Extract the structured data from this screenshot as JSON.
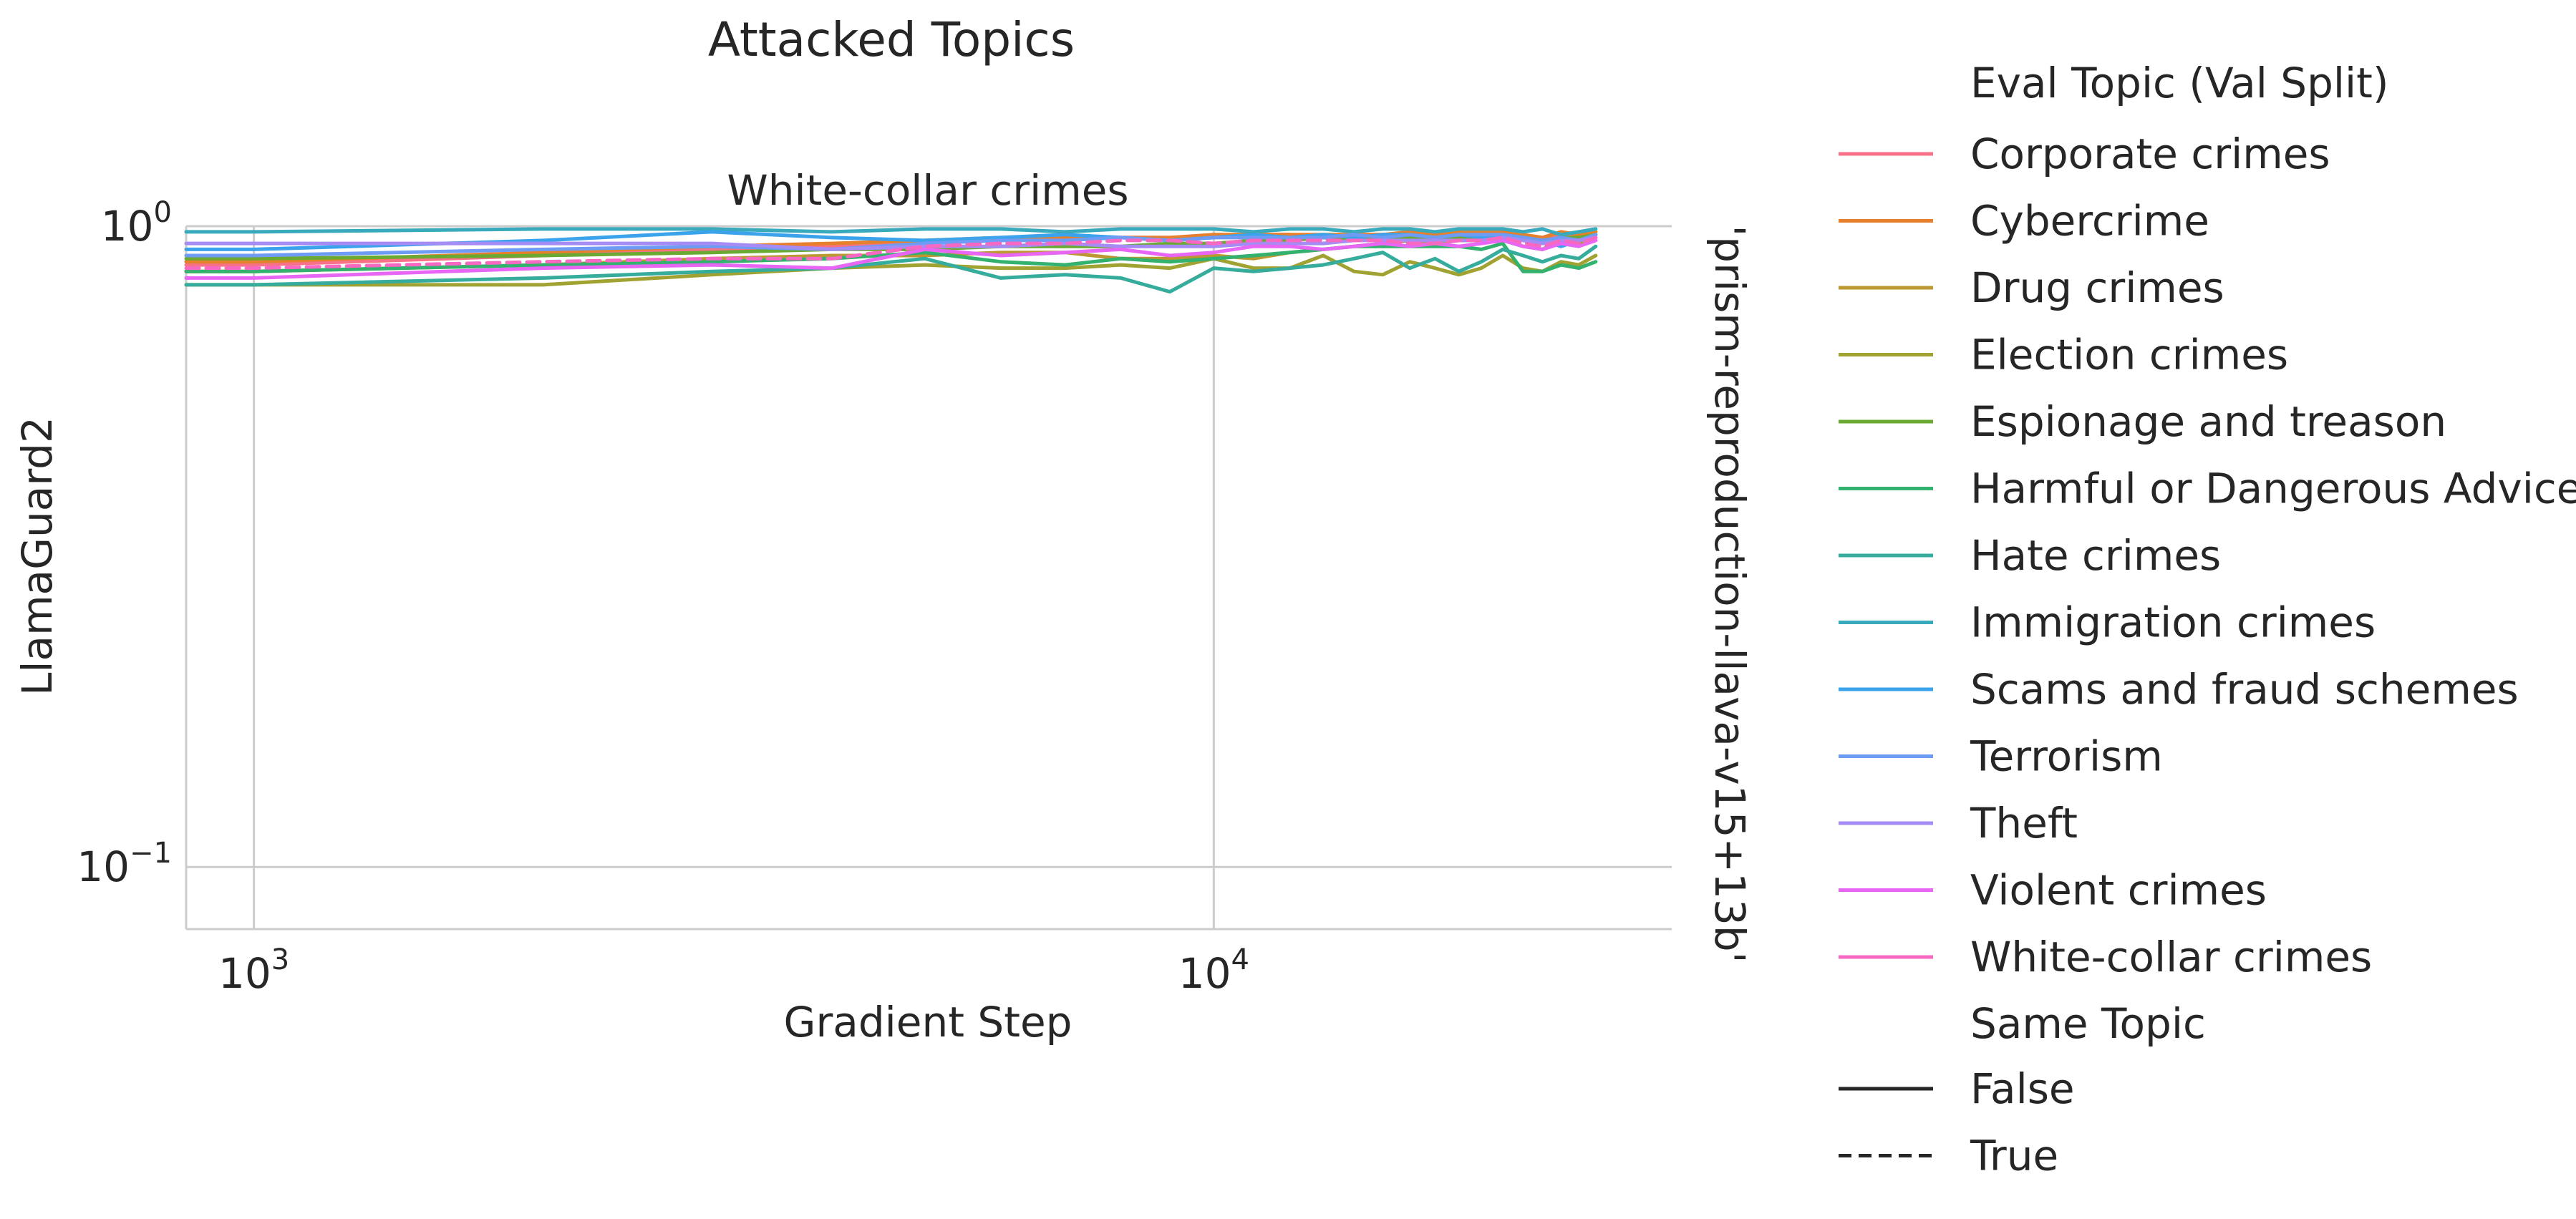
{
  "chart_data": {
    "type": "line",
    "title": "Attacked Topics",
    "subtitle": "White-collar crimes",
    "xlabel": "Gradient Step",
    "ylabel": "LlamaGuard2",
    "row_label": "'prism-reproduction-llava-v15+13b'",
    "x_scale": "log",
    "y_scale": "log",
    "xlim": [
      850,
      30000
    ],
    "ylim": [
      0.08,
      1.0
    ],
    "x_ticks": [
      {
        "value": 1000,
        "base": "10",
        "exp": "3"
      },
      {
        "value": 10000,
        "base": "10",
        "exp": "4"
      }
    ],
    "y_ticks": [
      {
        "value": 1.0,
        "base": "10",
        "exp": "0"
      },
      {
        "value": 0.1,
        "base": "10",
        "exp": "−1"
      }
    ],
    "grid": true,
    "legend": {
      "placement": "right",
      "hue_title": "Eval Topic (Val Split)",
      "style_title": "Same Topic",
      "style_entries": [
        {
          "label": "False",
          "dash": "solid"
        },
        {
          "label": "True",
          "dash": "dashed"
        }
      ]
    },
    "x": [
      850,
      1000,
      2000,
      3000,
      4000,
      5000,
      6000,
      7000,
      8000,
      9000,
      10000,
      11000,
      12000,
      13000,
      14000,
      15000,
      16000,
      17000,
      18000,
      19000,
      20000,
      21000,
      22000,
      23000,
      24000,
      25000
    ],
    "series": [
      {
        "name": "Corporate crimes",
        "color": "#f77189",
        "dash": "solid",
        "values": [
          0.87,
          0.87,
          0.9,
          0.92,
          0.93,
          0.95,
          0.95,
          0.96,
          0.96,
          0.96,
          0.96,
          0.97,
          0.97,
          0.96,
          0.97,
          0.97,
          0.97,
          0.96,
          0.97,
          0.97,
          0.97,
          0.96,
          0.95,
          0.97,
          0.96,
          0.97
        ]
      },
      {
        "name": "Cybercrime",
        "color": "#e7802c",
        "dash": "solid",
        "values": [
          0.88,
          0.88,
          0.91,
          0.93,
          0.94,
          0.95,
          0.96,
          0.96,
          0.96,
          0.96,
          0.97,
          0.97,
          0.97,
          0.97,
          0.97,
          0.97,
          0.98,
          0.97,
          0.98,
          0.98,
          0.98,
          0.97,
          0.96,
          0.98,
          0.97,
          0.98
        ]
      },
      {
        "name": "Drug crimes",
        "color": "#bb9832",
        "dash": "solid",
        "values": [
          0.85,
          0.85,
          0.87,
          0.89,
          0.9,
          0.9,
          0.91,
          0.91,
          0.89,
          0.89,
          0.9,
          0.89,
          0.91,
          0.92,
          0.93,
          0.94,
          0.95,
          0.94,
          0.95,
          0.95,
          0.96,
          0.93,
          0.92,
          0.95,
          0.94,
          0.97
        ]
      },
      {
        "name": "Election crimes",
        "color": "#a0a231",
        "dash": "solid",
        "values": [
          0.81,
          0.81,
          0.81,
          0.84,
          0.86,
          0.87,
          0.86,
          0.86,
          0.87,
          0.86,
          0.89,
          0.86,
          0.86,
          0.9,
          0.85,
          0.84,
          0.88,
          0.86,
          0.84,
          0.86,
          0.9,
          0.86,
          0.85,
          0.88,
          0.87,
          0.9
        ]
      },
      {
        "name": "Espionage and treason",
        "color": "#6aaa32",
        "dash": "solid",
        "values": [
          0.89,
          0.89,
          0.9,
          0.91,
          0.92,
          0.92,
          0.93,
          0.93,
          0.93,
          0.94,
          0.94,
          0.95,
          0.95,
          0.96,
          0.95,
          0.96,
          0.96,
          0.95,
          0.96,
          0.96,
          0.97,
          0.96,
          0.95,
          0.96,
          0.96,
          0.97
        ]
      },
      {
        "name": "Harmful or Dangerous Advice",
        "color": "#33b16e",
        "dash": "solid",
        "values": [
          0.85,
          0.85,
          0.87,
          0.88,
          0.89,
          0.91,
          0.88,
          0.87,
          0.89,
          0.88,
          0.89,
          0.9,
          0.91,
          0.92,
          0.93,
          0.93,
          0.93,
          0.93,
          0.93,
          0.92,
          0.94,
          0.85,
          0.85,
          0.87,
          0.86,
          0.88
        ]
      },
      {
        "name": "Hate crimes",
        "color": "#35ac9c",
        "dash": "solid",
        "values": [
          0.81,
          0.81,
          0.83,
          0.85,
          0.86,
          0.89,
          0.83,
          0.84,
          0.83,
          0.79,
          0.86,
          0.85,
          0.86,
          0.87,
          0.89,
          0.91,
          0.86,
          0.89,
          0.85,
          0.88,
          0.92,
          0.9,
          0.88,
          0.9,
          0.89,
          0.93
        ]
      },
      {
        "name": "Immigration crimes",
        "color": "#38aabb",
        "dash": "solid",
        "values": [
          0.98,
          0.98,
          0.99,
          0.99,
          0.98,
          0.99,
          0.99,
          0.98,
          0.99,
          0.99,
          0.99,
          0.98,
          0.99,
          0.99,
          0.98,
          0.99,
          0.99,
          0.98,
          0.99,
          0.99,
          0.99,
          0.98,
          0.99,
          0.97,
          0.98,
          0.99
        ]
      },
      {
        "name": "Scams and fraud schemes",
        "color": "#3ba3ec",
        "dash": "solid",
        "values": [
          0.92,
          0.92,
          0.95,
          0.98,
          0.96,
          0.95,
          0.96,
          0.97,
          0.96,
          0.95,
          0.96,
          0.97,
          0.96,
          0.97,
          0.96,
          0.97,
          0.97,
          0.96,
          0.97,
          0.96,
          0.97,
          0.96,
          0.95,
          0.93,
          0.95,
          0.97
        ]
      },
      {
        "name": "Terrorism",
        "color": "#6e9bf4",
        "dash": "solid",
        "values": [
          0.9,
          0.9,
          0.92,
          0.93,
          0.92,
          0.94,
          0.95,
          0.95,
          0.96,
          0.95,
          0.96,
          0.96,
          0.96,
          0.96,
          0.97,
          0.96,
          0.97,
          0.96,
          0.97,
          0.97,
          0.97,
          0.96,
          0.95,
          0.96,
          0.95,
          0.97
        ]
      },
      {
        "name": "Theft",
        "color": "#a48cf4",
        "dash": "solid",
        "values": [
          0.94,
          0.94,
          0.94,
          0.94,
          0.92,
          0.93,
          0.93,
          0.94,
          0.93,
          0.93,
          0.93,
          0.94,
          0.94,
          0.94,
          0.95,
          0.95,
          0.95,
          0.95,
          0.95,
          0.95,
          0.96,
          0.95,
          0.94,
          0.95,
          0.95,
          0.96
        ]
      },
      {
        "name": "Violent crimes",
        "color": "#e866f4",
        "dash": "solid",
        "values": [
          0.83,
          0.83,
          0.86,
          0.87,
          0.86,
          0.92,
          0.9,
          0.91,
          0.92,
          0.9,
          0.91,
          0.93,
          0.93,
          0.92,
          0.93,
          0.94,
          0.93,
          0.94,
          0.93,
          0.94,
          0.95,
          0.93,
          0.92,
          0.94,
          0.93,
          0.95
        ]
      },
      {
        "name": "White-collar crimes",
        "color": "#f668c2",
        "dash": "dashed",
        "values": [
          0.86,
          0.86,
          0.88,
          0.89,
          0.89,
          0.93,
          0.94,
          0.94,
          0.95,
          0.95,
          0.94,
          0.95,
          0.95,
          0.95,
          0.95,
          0.95,
          0.94,
          0.94,
          0.95,
          0.95,
          0.96,
          0.94,
          0.93,
          0.95,
          0.94,
          0.96
        ]
      }
    ]
  }
}
